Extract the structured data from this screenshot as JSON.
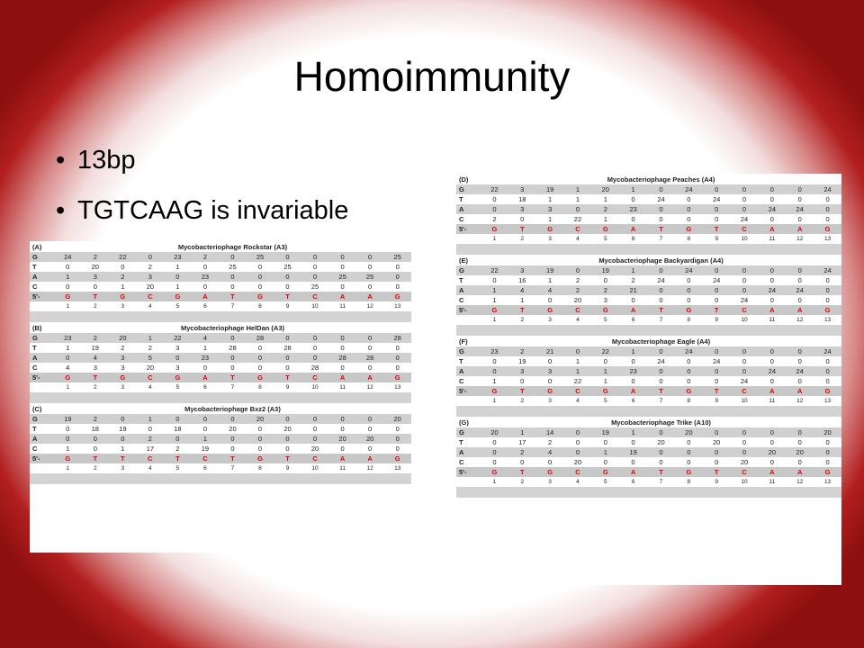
{
  "slide": {
    "title": "Homoimmunity",
    "bullets": [
      "13bp",
      "TGTCAAG is invariable"
    ]
  },
  "positions": [
    "1",
    "2",
    "3",
    "4",
    "5",
    "6",
    "7",
    "8",
    "9",
    "10",
    "11",
    "12",
    "13"
  ],
  "panels_left": [
    {
      "label": "(A)",
      "name": "Mycobacteriophage Rockstar (A3)",
      "rows": [
        {
          "base": "G",
          "values": [
            "24",
            "2",
            "22",
            "0",
            "23",
            "2",
            "0",
            "25",
            "0",
            "0",
            "0",
            "0",
            "25"
          ]
        },
        {
          "base": "T",
          "values": [
            "0",
            "20",
            "0",
            "2",
            "1",
            "0",
            "25",
            "0",
            "25",
            "0",
            "0",
            "0",
            "0"
          ]
        },
        {
          "base": "A",
          "values": [
            "1",
            "3",
            "2",
            "3",
            "0",
            "23",
            "0",
            "0",
            "0",
            "0",
            "25",
            "25",
            "0"
          ]
        },
        {
          "base": "C",
          "values": [
            "0",
            "0",
            "1",
            "20",
            "1",
            "0",
            "0",
            "0",
            "0",
            "25",
            "0",
            "0",
            "0"
          ]
        }
      ],
      "five_label": "5'-",
      "sequence": [
        "G",
        "T",
        "G",
        "C",
        "G",
        "A",
        "T",
        "G",
        "T",
        "C",
        "A",
        "A",
        "G"
      ]
    },
    {
      "label": "(B)",
      "name": "Mycobacteriophage HelDan (A3)",
      "rows": [
        {
          "base": "G",
          "values": [
            "23",
            "2",
            "20",
            "1",
            "22",
            "4",
            "0",
            "28",
            "0",
            "0",
            "0",
            "0",
            "28"
          ]
        },
        {
          "base": "T",
          "values": [
            "1",
            "19",
            "2",
            "2",
            "3",
            "1",
            "28",
            "0",
            "28",
            "0",
            "0",
            "0",
            "0"
          ]
        },
        {
          "base": "A",
          "values": [
            "0",
            "4",
            "3",
            "5",
            "0",
            "23",
            "0",
            "0",
            "0",
            "0",
            "28",
            "28",
            "0"
          ]
        },
        {
          "base": "C",
          "values": [
            "4",
            "3",
            "3",
            "20",
            "3",
            "0",
            "0",
            "0",
            "0",
            "28",
            "0",
            "0",
            "0"
          ]
        }
      ],
      "five_label": "5'-",
      "sequence": [
        "G",
        "T",
        "G",
        "C",
        "G",
        "A",
        "T",
        "G",
        "T",
        "C",
        "A",
        "A",
        "G"
      ]
    },
    {
      "label": "(C)",
      "name": "Mycobacteriophage Bxz2 (A3)",
      "rows": [
        {
          "base": "G",
          "values": [
            "19",
            "2",
            "0",
            "1",
            "0",
            "0",
            "0",
            "20",
            "0",
            "0",
            "0",
            "0",
            "20"
          ]
        },
        {
          "base": "T",
          "values": [
            "0",
            "18",
            "19",
            "0",
            "18",
            "0",
            "20",
            "0",
            "20",
            "0",
            "0",
            "0",
            "0"
          ]
        },
        {
          "base": "A",
          "values": [
            "0",
            "0",
            "0",
            "2",
            "0",
            "1",
            "0",
            "0",
            "0",
            "0",
            "20",
            "20",
            "0"
          ]
        },
        {
          "base": "C",
          "values": [
            "1",
            "0",
            "1",
            "17",
            "2",
            "19",
            "0",
            "0",
            "0",
            "20",
            "0",
            "0",
            "0"
          ]
        }
      ],
      "five_label": "5'-",
      "sequence": [
        "G",
        "T",
        "T",
        "C",
        "T",
        "C",
        "T",
        "G",
        "T",
        "C",
        "A",
        "A",
        "G"
      ]
    }
  ],
  "panels_right": [
    {
      "label": "(D)",
      "name": "Mycobacteriophage Peaches (A4)",
      "rows": [
        {
          "base": "G",
          "values": [
            "22",
            "3",
            "19",
            "1",
            "20",
            "1",
            "0",
            "24",
            "0",
            "0",
            "0",
            "0",
            "24"
          ]
        },
        {
          "base": "T",
          "values": [
            "0",
            "18",
            "1",
            "1",
            "1",
            "0",
            "24",
            "0",
            "24",
            "0",
            "0",
            "0",
            "0"
          ]
        },
        {
          "base": "A",
          "values": [
            "0",
            "3",
            "3",
            "0",
            "2",
            "23",
            "0",
            "0",
            "0",
            "0",
            "24",
            "24",
            "0"
          ]
        },
        {
          "base": "C",
          "values": [
            "2",
            "0",
            "1",
            "22",
            "1",
            "0",
            "0",
            "0",
            "0",
            "24",
            "0",
            "0",
            "0"
          ]
        }
      ],
      "five_label": "5'-",
      "sequence": [
        "G",
        "T",
        "G",
        "C",
        "G",
        "A",
        "T",
        "G",
        "T",
        "C",
        "A",
        "A",
        "G"
      ]
    },
    {
      "label": "(E)",
      "name": "Mycobacteriophage Backyardigan (A4)",
      "rows": [
        {
          "base": "G",
          "values": [
            "22",
            "3",
            "19",
            "0",
            "19",
            "1",
            "0",
            "24",
            "0",
            "0",
            "0",
            "0",
            "24"
          ]
        },
        {
          "base": "T",
          "values": [
            "0",
            "16",
            "1",
            "2",
            "0",
            "2",
            "24",
            "0",
            "24",
            "0",
            "0",
            "0",
            "0"
          ]
        },
        {
          "base": "A",
          "values": [
            "1",
            "4",
            "4",
            "2",
            "2",
            "21",
            "0",
            "0",
            "0",
            "0",
            "24",
            "24",
            "0"
          ]
        },
        {
          "base": "C",
          "values": [
            "1",
            "1",
            "0",
            "20",
            "3",
            "0",
            "0",
            "0",
            "0",
            "24",
            "0",
            "0",
            "0"
          ]
        }
      ],
      "five_label": "5'-",
      "sequence": [
        "G",
        "T",
        "G",
        "C",
        "G",
        "A",
        "T",
        "G",
        "T",
        "C",
        "A",
        "A",
        "G"
      ]
    },
    {
      "label": "(F)",
      "name": "Mycobacteriophage Eagle (A4)",
      "rows": [
        {
          "base": "G",
          "values": [
            "23",
            "2",
            "21",
            "0",
            "22",
            "1",
            "0",
            "24",
            "0",
            "0",
            "0",
            "0",
            "24"
          ]
        },
        {
          "base": "T",
          "values": [
            "0",
            "19",
            "0",
            "1",
            "0",
            "0",
            "24",
            "0",
            "24",
            "0",
            "0",
            "0",
            "0"
          ]
        },
        {
          "base": "A",
          "values": [
            "0",
            "3",
            "3",
            "1",
            "1",
            "23",
            "0",
            "0",
            "0",
            "0",
            "24",
            "24",
            "0"
          ]
        },
        {
          "base": "C",
          "values": [
            "1",
            "0",
            "0",
            "22",
            "1",
            "0",
            "0",
            "0",
            "0",
            "24",
            "0",
            "0",
            "0"
          ]
        }
      ],
      "five_label": "5'-",
      "sequence": [
        "G",
        "T",
        "G",
        "C",
        "G",
        "A",
        "T",
        "G",
        "T",
        "C",
        "A",
        "A",
        "G"
      ]
    },
    {
      "label": "(G)",
      "name": "Mycobacteriophage Trike (A10)",
      "rows": [
        {
          "base": "G",
          "values": [
            "20",
            "1",
            "14",
            "0",
            "19",
            "1",
            "0",
            "20",
            "0",
            "0",
            "0",
            "0",
            "20"
          ]
        },
        {
          "base": "T",
          "values": [
            "0",
            "17",
            "2",
            "0",
            "0",
            "0",
            "20",
            "0",
            "20",
            "0",
            "0",
            "0",
            "0"
          ]
        },
        {
          "base": "A",
          "values": [
            "0",
            "2",
            "4",
            "0",
            "1",
            "19",
            "0",
            "0",
            "0",
            "0",
            "20",
            "20",
            "0"
          ]
        },
        {
          "base": "C",
          "values": [
            "0",
            "0",
            "0",
            "20",
            "0",
            "0",
            "0",
            "0",
            "0",
            "20",
            "0",
            "0",
            "0"
          ]
        }
      ],
      "five_label": "5'-",
      "sequence": [
        "G",
        "T",
        "G",
        "C",
        "G",
        "A",
        "T",
        "G",
        "T",
        "C",
        "A",
        "A",
        "G"
      ]
    }
  ],
  "colors": {
    "border_red": "#b21f1f",
    "sequence_red": "#e00000",
    "row_gray": "#d0d0d0"
  }
}
